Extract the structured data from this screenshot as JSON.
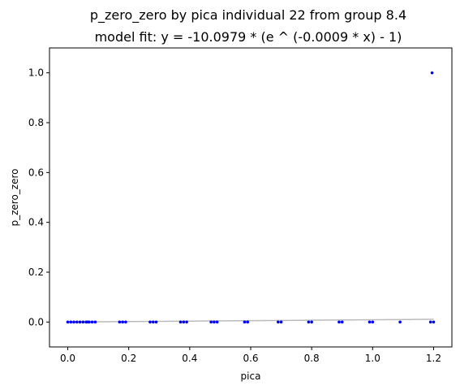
{
  "chart_data": {
    "type": "scatter",
    "title": "p_zero_zero by pica individual 22 from group 8.4",
    "subtitle": "model fit: y = -10.0979 * (e ^ (-0.0009 * x) - 1)",
    "xlabel": "pica",
    "ylabel": "p_zero_zero",
    "xlim": [
      -0.06,
      1.26
    ],
    "ylim": [
      -0.1,
      1.1
    ],
    "xticks": [
      0.0,
      0.2,
      0.4,
      0.6,
      0.8,
      1.0,
      1.2
    ],
    "xtick_labels": [
      "0.0",
      "0.2",
      "0.4",
      "0.6",
      "0.8",
      "1.0",
      "1.2"
    ],
    "yticks": [
      0.0,
      0.2,
      0.4,
      0.6,
      0.8,
      1.0
    ],
    "ytick_labels": [
      "0.0",
      "0.2",
      "0.4",
      "0.6",
      "0.8",
      "1.0"
    ],
    "grid": false,
    "point_color": "#0000ff",
    "fit_color": "#bbbbbb",
    "fit_model": {
      "a": -10.0979,
      "b": -0.0009
    },
    "points": {
      "x": [
        0.0,
        0.01,
        0.02,
        0.03,
        0.04,
        0.05,
        0.06,
        0.065,
        0.07,
        0.08,
        0.09,
        0.17,
        0.18,
        0.19,
        0.27,
        0.28,
        0.29,
        0.37,
        0.38,
        0.39,
        0.47,
        0.48,
        0.49,
        0.58,
        0.59,
        0.69,
        0.7,
        0.79,
        0.8,
        0.89,
        0.9,
        0.99,
        1.0,
        1.09,
        1.19,
        1.2,
        1.195
      ],
      "y": [
        0,
        0,
        0,
        0,
        0,
        0,
        0,
        0,
        0,
        0,
        0,
        0,
        0,
        0,
        0,
        0,
        0,
        0,
        0,
        0,
        0,
        0,
        0,
        0,
        0,
        0,
        0,
        0,
        0,
        0,
        0,
        0,
        0,
        0,
        0,
        0,
        1.0
      ]
    }
  }
}
